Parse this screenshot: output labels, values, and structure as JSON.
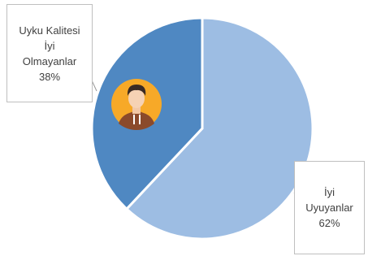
{
  "chart_data": {
    "type": "pie",
    "categories": [
      "İyi Uyuyanlar",
      "Uyku Kalitesi İyi Olmayanlar"
    ],
    "values": [
      62,
      38
    ],
    "value_labels": [
      "62%",
      "38%"
    ],
    "colors": [
      "#9dbde3",
      "#4f88c2"
    ]
  }
}
